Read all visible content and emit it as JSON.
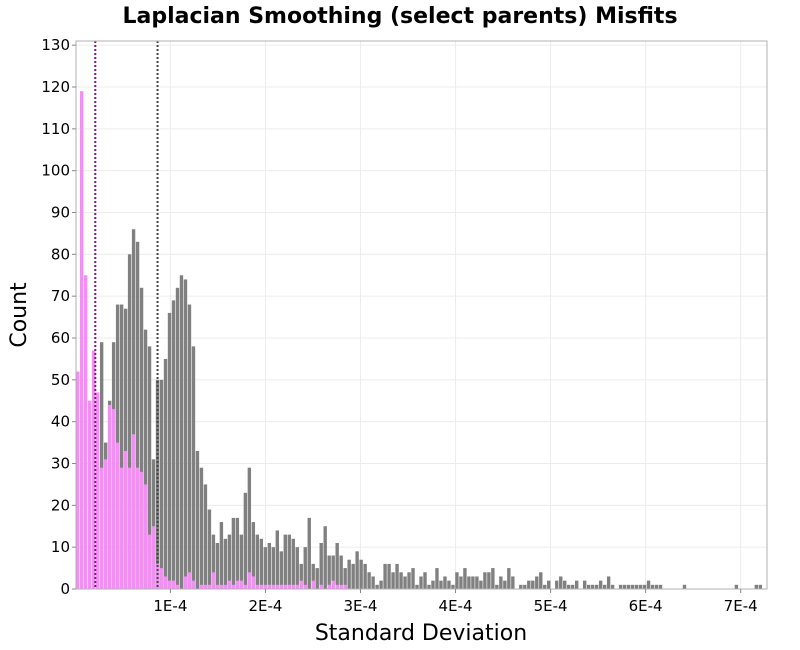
{
  "chart_data": {
    "type": "bar",
    "title": "Laplacian Smoothing (select parents) Misfits",
    "xlabel": "Standard Deviation",
    "ylabel": "Count",
    "xlim": [
      7e-07,
      0.0007277
    ],
    "ylim": [
      0,
      131
    ],
    "bin_width": 4.2e-06,
    "grid": true,
    "legend": "none",
    "x_ticks": [
      {
        "value": 0.0001,
        "label": "1E-4"
      },
      {
        "value": 0.0002,
        "label": "2E-4"
      },
      {
        "value": 0.0003,
        "label": "3E-4"
      },
      {
        "value": 0.0004,
        "label": "4E-4"
      },
      {
        "value": 0.0005,
        "label": "5E-4"
      },
      {
        "value": 0.0006,
        "label": "6E-4"
      },
      {
        "value": 0.0007,
        "label": "7E-4"
      }
    ],
    "y_ticks": [
      0,
      10,
      20,
      30,
      40,
      50,
      60,
      70,
      80,
      90,
      100,
      110,
      120,
      130
    ],
    "series": [
      {
        "color": "#808080",
        "bins": [
          [
            7e-07,
            0
          ],
          [
            4.9e-06,
            0
          ],
          [
            9.1e-06,
            0
          ],
          [
            1.33e-05,
            0
          ],
          [
            1.75e-05,
            0
          ],
          [
            2.17e-05,
            0
          ],
          [
            2.59e-05,
            59
          ],
          [
            3.01e-05,
            35
          ],
          [
            3.43e-05,
            45
          ],
          [
            3.85e-05,
            59
          ],
          [
            4.27e-05,
            68
          ],
          [
            4.69e-05,
            68
          ],
          [
            5.11e-05,
            67
          ],
          [
            5.53e-05,
            80
          ],
          [
            5.95e-05,
            86
          ],
          [
            6.37e-05,
            83
          ],
          [
            6.79e-05,
            72
          ],
          [
            7.21e-05,
            62
          ],
          [
            7.63e-05,
            58
          ],
          [
            8.05e-05,
            31
          ],
          [
            8.47e-05,
            50
          ],
          [
            8.89e-05,
            50
          ],
          [
            9.31e-05,
            55
          ],
          [
            9.73e-05,
            66
          ],
          [
            0.0001015,
            69
          ],
          [
            0.0001057,
            72
          ],
          [
            0.0001099,
            75
          ],
          [
            0.0001141,
            74
          ],
          [
            0.0001183,
            68
          ],
          [
            0.0001225,
            58
          ],
          [
            0.0001267,
            33
          ],
          [
            0.0001309,
            29
          ],
          [
            0.0001351,
            25
          ],
          [
            0.0001393,
            19
          ],
          [
            0.0001435,
            13
          ],
          [
            0.0001477,
            11
          ],
          [
            0.0001519,
            16
          ],
          [
            0.0001561,
            12
          ],
          [
            0.0001603,
            13
          ],
          [
            0.0001645,
            17
          ],
          [
            0.0001687,
            17
          ],
          [
            0.0001729,
            13
          ],
          [
            0.0001771,
            23
          ],
          [
            0.0001813,
            29
          ],
          [
            0.0001855,
            16
          ],
          [
            0.0001897,
            13
          ],
          [
            0.0001939,
            12
          ],
          [
            0.0001981,
            10
          ],
          [
            0.0002023,
            11
          ],
          [
            0.0002065,
            10
          ],
          [
            0.0002107,
            14
          ],
          [
            0.0002149,
            9
          ],
          [
            0.0002191,
            13
          ],
          [
            0.0002233,
            13
          ],
          [
            0.0002275,
            12
          ],
          [
            0.0002317,
            10
          ],
          [
            0.0002359,
            6
          ],
          [
            0.0002401,
            10
          ],
          [
            0.0002443,
            17
          ],
          [
            0.0002485,
            6
          ],
          [
            0.0002527,
            5
          ],
          [
            0.0002569,
            11
          ],
          [
            0.0002611,
            15
          ],
          [
            0.0002653,
            8
          ],
          [
            0.0002695,
            8
          ],
          [
            0.0002737,
            11
          ],
          [
            0.0002779,
            8
          ],
          [
            0.0002821,
            5
          ],
          [
            0.0002863,
            7
          ],
          [
            0.0002905,
            6
          ],
          [
            0.0002947,
            9
          ],
          [
            0.0002989,
            7
          ],
          [
            0.0003031,
            6
          ],
          [
            0.0003073,
            4
          ],
          [
            0.0003115,
            3
          ],
          [
            0.0003157,
            1
          ],
          [
            0.0003199,
            2
          ],
          [
            0.0003241,
            6
          ],
          [
            0.0003283,
            6
          ],
          [
            0.0003325,
            4
          ],
          [
            0.0003367,
            6
          ],
          [
            0.0003409,
            4
          ],
          [
            0.0003451,
            3
          ],
          [
            0.0003493,
            4
          ],
          [
            0.0003535,
            5
          ],
          [
            0.0003577,
            1
          ],
          [
            0.0003619,
            3
          ],
          [
            0.0003661,
            4
          ],
          [
            0.0003703,
            1
          ],
          [
            0.0003745,
            2
          ],
          [
            0.0003787,
            5
          ],
          [
            0.0003829,
            2
          ],
          [
            0.0003871,
            3
          ],
          [
            0.0003913,
            2
          ],
          [
            0.0003955,
            1
          ],
          [
            0.0003997,
            4
          ],
          [
            0.0004039,
            3
          ],
          [
            0.0004081,
            5
          ],
          [
            0.0004123,
            3
          ],
          [
            0.0004165,
            3
          ],
          [
            0.0004207,
            3
          ],
          [
            0.0004249,
            2
          ],
          [
            0.0004291,
            4
          ],
          [
            0.0004333,
            4
          ],
          [
            0.0004375,
            5
          ],
          [
            0.0004417,
            1
          ],
          [
            0.0004459,
            3
          ],
          [
            0.0004501,
            2
          ],
          [
            0.0004543,
            5
          ],
          [
            0.0004585,
            3
          ],
          [
            0.0004627,
            0
          ],
          [
            0.0004669,
            1
          ],
          [
            0.0004711,
            1
          ],
          [
            0.0004753,
            2
          ],
          [
            0.0004795,
            2
          ],
          [
            0.0004837,
            3
          ],
          [
            0.0004879,
            4
          ],
          [
            0.0004921,
            1
          ],
          [
            0.0004963,
            2
          ],
          [
            0.0005005,
            0
          ],
          [
            0.0005047,
            2
          ],
          [
            0.0005089,
            3
          ],
          [
            0.0005131,
            2
          ],
          [
            0.0005173,
            1
          ],
          [
            0.0005215,
            1
          ],
          [
            0.0005257,
            2
          ],
          [
            0.0005299,
            0
          ],
          [
            0.0005341,
            2
          ],
          [
            0.0005383,
            1
          ],
          [
            0.0005425,
            1
          ],
          [
            0.0005467,
            1
          ],
          [
            0.0005509,
            2
          ],
          [
            0.0005551,
            1
          ],
          [
            0.0005593,
            3
          ],
          [
            0.0005635,
            1
          ],
          [
            0.0005677,
            0
          ],
          [
            0.0005719,
            1
          ],
          [
            0.0005761,
            1
          ],
          [
            0.0005803,
            1
          ],
          [
            0.0005845,
            1
          ],
          [
            0.0005887,
            1
          ],
          [
            0.0005929,
            1
          ],
          [
            0.0005971,
            1
          ],
          [
            0.0006013,
            2
          ],
          [
            0.0006055,
            1
          ],
          [
            0.0006097,
            1
          ],
          [
            0.0006139,
            1
          ],
          [
            0.0006181,
            0
          ],
          [
            0.0006223,
            0
          ],
          [
            0.0006265,
            0
          ],
          [
            0.0006307,
            0
          ],
          [
            0.0006349,
            0
          ],
          [
            0.0006391,
            1
          ],
          [
            0.0006433,
            0
          ],
          [
            0.0006475,
            0
          ],
          [
            0.0006517,
            0
          ],
          [
            0.0006559,
            0
          ],
          [
            0.0006601,
            0
          ],
          [
            0.0006643,
            0
          ],
          [
            0.0006685,
            0
          ],
          [
            0.0006727,
            0
          ],
          [
            0.0006769,
            0
          ],
          [
            0.0006811,
            0
          ],
          [
            0.0006853,
            0
          ],
          [
            0.0006895,
            0
          ],
          [
            0.0006937,
            1
          ],
          [
            0.0006979,
            0
          ],
          [
            0.0007021,
            0
          ],
          [
            0.0007063,
            0
          ],
          [
            0.0007105,
            0
          ],
          [
            0.0007147,
            1
          ],
          [
            0.0007189,
            1
          ],
          [
            0.0007231,
            0
          ],
          [
            0.0007273,
            0
          ],
          [
            0.0007315,
            1
          ],
          [
            0.0007357,
            1
          ],
          [
            0.0007399,
            0
          ],
          [
            0.0007441,
            0
          ],
          [
            0.0007483,
            1
          ]
        ]
      },
      {
        "color": "#f98af9",
        "bins": [
          [
            7e-07,
            52
          ],
          [
            4.9e-06,
            119
          ],
          [
            9.1e-06,
            75
          ],
          [
            1.33e-05,
            45
          ],
          [
            1.75e-05,
            57
          ],
          [
            2.17e-05,
            47
          ],
          [
            2.59e-05,
            29
          ],
          [
            3.01e-05,
            31
          ],
          [
            3.43e-05,
            44
          ],
          [
            3.85e-05,
            43
          ],
          [
            4.27e-05,
            35
          ],
          [
            4.69e-05,
            29
          ],
          [
            5.11e-05,
            33
          ],
          [
            5.53e-05,
            29
          ],
          [
            5.95e-05,
            37
          ],
          [
            6.37e-05,
            29
          ],
          [
            6.79e-05,
            28
          ],
          [
            7.21e-05,
            25
          ],
          [
            7.63e-05,
            13
          ],
          [
            8.05e-05,
            15
          ],
          [
            8.47e-05,
            6
          ],
          [
            8.89e-05,
            5
          ],
          [
            9.31e-05,
            3
          ],
          [
            9.73e-05,
            2
          ],
          [
            0.0001015,
            2
          ],
          [
            0.0001057,
            1
          ],
          [
            0.0001099,
            0
          ],
          [
            0.0001141,
            3
          ],
          [
            0.0001183,
            4
          ],
          [
            0.0001225,
            2
          ],
          [
            0.0001267,
            0
          ],
          [
            0.0001309,
            1
          ],
          [
            0.0001351,
            1
          ],
          [
            0.0001393,
            1
          ],
          [
            0.0001435,
            4
          ],
          [
            0.0001477,
            1
          ],
          [
            0.0001519,
            1
          ],
          [
            0.0001561,
            1
          ],
          [
            0.0001603,
            2
          ],
          [
            0.0001645,
            1
          ],
          [
            0.0001687,
            2
          ],
          [
            0.0001729,
            2
          ],
          [
            0.0001771,
            1
          ],
          [
            0.0001813,
            4
          ],
          [
            0.0001855,
            3
          ],
          [
            0.0001897,
            1
          ],
          [
            0.0001939,
            1
          ],
          [
            0.0001981,
            1
          ],
          [
            0.0002023,
            1
          ],
          [
            0.0002065,
            1
          ],
          [
            0.0002107,
            1
          ],
          [
            0.0002149,
            1
          ],
          [
            0.0002191,
            1
          ],
          [
            0.0002233,
            1
          ],
          [
            0.0002275,
            1
          ],
          [
            0.0002317,
            1
          ],
          [
            0.0002359,
            2
          ],
          [
            0.0002401,
            1
          ],
          [
            0.0002443,
            0
          ],
          [
            0.0002485,
            2
          ],
          [
            0.0002527,
            0
          ],
          [
            0.0002569,
            1
          ],
          [
            0.0002611,
            0
          ],
          [
            0.0002653,
            1
          ],
          [
            0.0002695,
            2
          ],
          [
            0.0002737,
            1
          ],
          [
            0.0002779,
            1
          ],
          [
            0.0002821,
            1
          ]
        ]
      }
    ],
    "reference_lines": [
      {
        "x": 2.1e-05,
        "color": "#7a1a7a",
        "style": "dotted"
      },
      {
        "x": 8.65e-05,
        "color": "#444444",
        "style": "dotted"
      }
    ]
  }
}
